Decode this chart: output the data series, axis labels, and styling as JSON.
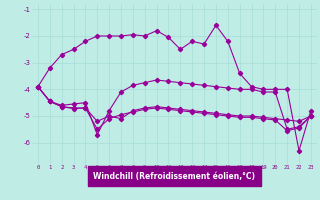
{
  "xlabel": "Windchill (Refroidissement éolien,°C)",
  "background_color": "#c0ece6",
  "grid_color": "#a8ddd8",
  "line_color": "#990099",
  "x": [
    0,
    1,
    2,
    3,
    4,
    5,
    6,
    7,
    8,
    9,
    10,
    11,
    12,
    13,
    14,
    15,
    16,
    17,
    18,
    19,
    20,
    21,
    22,
    23
  ],
  "series1": [
    -3.9,
    -3.2,
    -2.7,
    -2.5,
    -2.2,
    -2.0,
    -2.0,
    -2.0,
    -1.95,
    -2.0,
    -1.8,
    -2.05,
    -2.5,
    -2.2,
    -2.3,
    -1.6,
    -2.2,
    -3.4,
    -3.9,
    -4.0,
    -4.0,
    -4.0,
    -6.3,
    -4.8
  ],
  "series2": [
    -3.9,
    -4.45,
    -4.6,
    -4.55,
    -4.5,
    -5.7,
    -4.8,
    -4.1,
    -3.85,
    -3.75,
    -3.65,
    -3.7,
    -3.75,
    -3.8,
    -3.85,
    -3.9,
    -3.95,
    -4.0,
    -4.0,
    -4.1,
    -4.1,
    -5.5,
    -5.4,
    -5.0
  ],
  "series3": [
    -3.9,
    -4.45,
    -4.65,
    -4.7,
    -4.7,
    -5.2,
    -5.0,
    -5.1,
    -4.8,
    -4.7,
    -4.65,
    -4.7,
    -4.75,
    -4.8,
    -4.85,
    -4.9,
    -4.95,
    -5.0,
    -5.0,
    -5.05,
    -5.1,
    -5.15,
    -5.2,
    -5.0
  ],
  "series4": [
    -3.9,
    -4.45,
    -4.65,
    -4.72,
    -4.7,
    -5.5,
    -5.1,
    -4.95,
    -4.85,
    -4.75,
    -4.7,
    -4.75,
    -4.8,
    -4.85,
    -4.9,
    -4.95,
    -5.0,
    -5.05,
    -5.05,
    -5.1,
    -5.15,
    -5.55,
    -5.45,
    -5.0
  ],
  "ylim": [
    -6.8,
    -0.8
  ],
  "yticks": [
    -6,
    -5,
    -4,
    -3,
    -2,
    -1
  ],
  "xlim": [
    -0.5,
    23.5
  ],
  "xlabel_bg": "#880088",
  "xlabel_color": "#ffffff",
  "tick_color": "#880088",
  "figsize": [
    3.2,
    2.0
  ],
  "dpi": 100
}
